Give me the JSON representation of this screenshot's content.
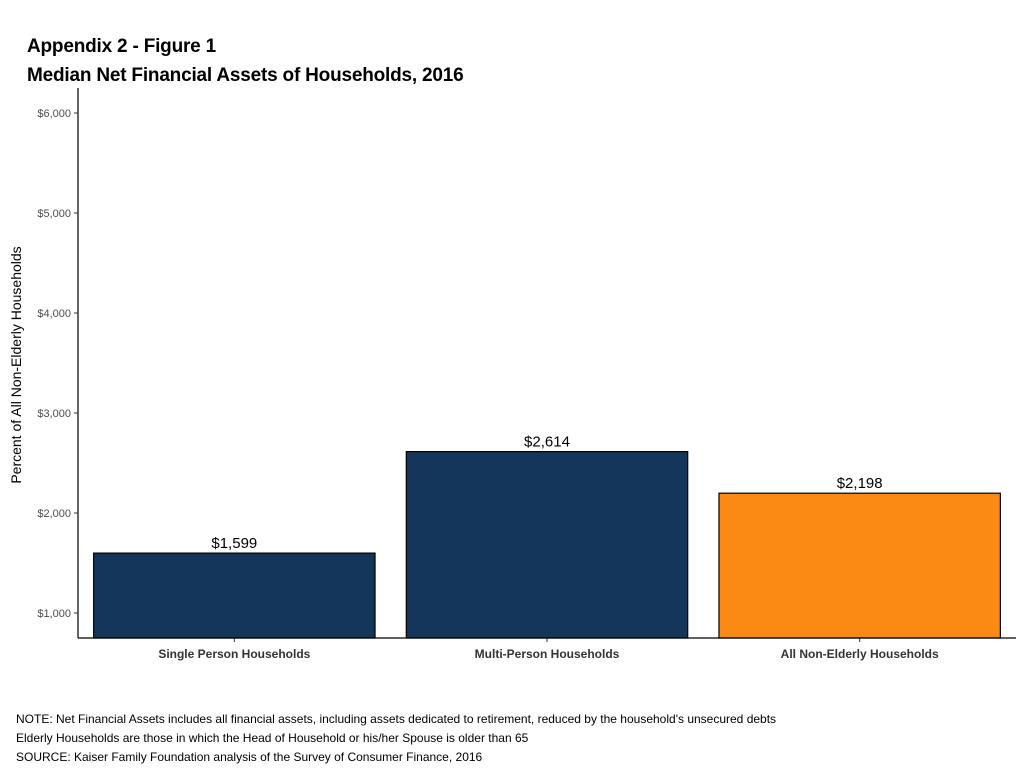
{
  "figure": {
    "title_line1": "Appendix 2 - Figure 1",
    "title_line2": "Median Net Financial Assets of Households, 2016"
  },
  "chart_data": {
    "type": "bar",
    "title": "Median Net Financial Assets of Households, 2016",
    "xlabel": "",
    "ylabel": "Percent of All Non-Elderly Households",
    "categories": [
      "Single Person Households",
      "Multi-Person Households",
      "All Non-Elderly Households"
    ],
    "values": [
      1599,
      2614,
      2198
    ],
    "data_labels": [
      "$1,599",
      "$2,614",
      "$2,198"
    ],
    "bar_colors": [
      "#14365a",
      "#14365a",
      "#fb8a15"
    ],
    "y_ticks": [
      1000,
      2000,
      3000,
      4000,
      5000,
      6000
    ],
    "y_tick_labels": [
      "$1,000",
      "$2,000",
      "$3,000",
      "$4,000",
      "$5,000",
      "$6,000"
    ],
    "ylim": [
      750,
      6250
    ],
    "grid": false,
    "legend": "none"
  },
  "notes": [
    "NOTE: Net Financial Assets includes all financial assets, including assets dedicated to retirement, reduced by the household's unsecured debts",
    "Elderly Households are those in which the Head of Household or his/her Spouse is older than 65",
    "SOURCE: Kaiser Family Foundation analysis of the Survey of Consumer Finance, 2016"
  ]
}
